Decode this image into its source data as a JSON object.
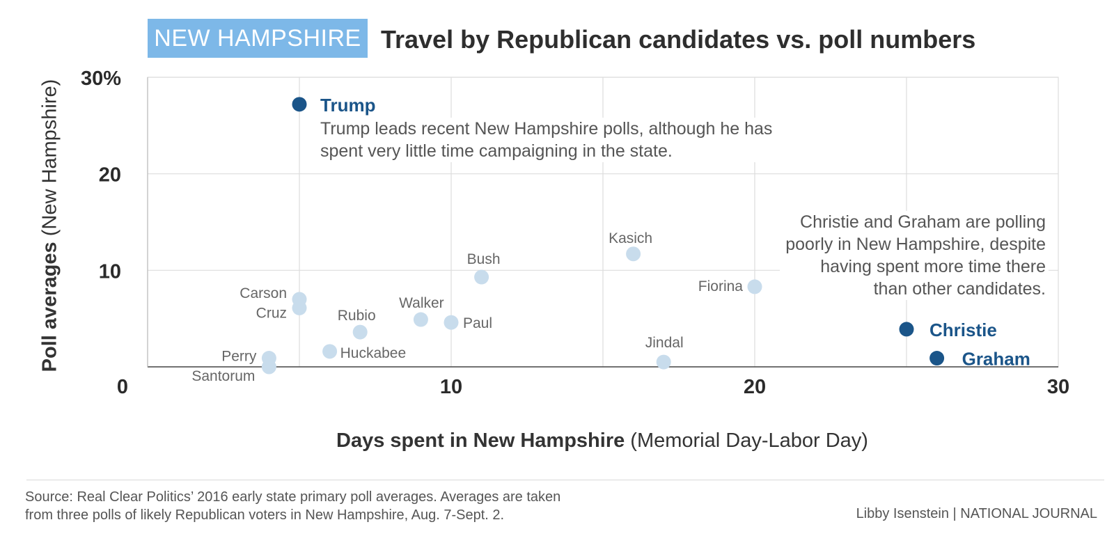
{
  "header": {
    "badge": "NEW HAMPSHIRE",
    "title": "Travel by Republican candidates vs. poll numbers"
  },
  "axes": {
    "y_label_bold": "Poll averages",
    "y_label_rest": " (New Hampshire)",
    "x_label_bold": "Days spent in New Hampshire",
    "x_label_rest": " (Memorial Day-Labor Day)"
  },
  "annotations": {
    "trump_note": "Trump leads recent New Hampshire polls, although he has spent very little time campaigning in the state.",
    "christie_graham_note": "Christie and Graham are polling poorly in New Hampshire, despite having spent more time there than other candidates."
  },
  "footer": {
    "source": "Source: Real Clear Politics’ 2016 early state primary poll averages. Averages are taken from three polls of likely Republican voters in New Hampshire, Aug. 7-Sept. 2.",
    "credit": "Libby Isenstein | NATIONAL JOURNAL"
  },
  "colors": {
    "highlight": "#1b5589",
    "muted_point": "#c8dcec",
    "badge": "#7db8e8",
    "grid": "#dddddd"
  },
  "chart_data": {
    "type": "scatter",
    "title": "Travel by Republican candidates vs. poll numbers",
    "xlabel": "Days spent in New Hampshire (Memorial Day-Labor Day)",
    "ylabel": "Poll averages (New Hampshire)",
    "xlim": [
      0,
      30
    ],
    "ylim": [
      0,
      30
    ],
    "x_ticks": [
      0,
      10,
      20,
      30
    ],
    "x_tick_labels": [
      "0",
      "10",
      "20",
      "30"
    ],
    "y_ticks": [
      10,
      20,
      30
    ],
    "y_tick_labels": [
      "10",
      "20",
      "30%"
    ],
    "grid": true,
    "points": [
      {
        "label": "Trump",
        "x": 5,
        "y": 27.2,
        "highlight": true
      },
      {
        "label": "Christie",
        "x": 25,
        "y": 3.9,
        "highlight": true
      },
      {
        "label": "Graham",
        "x": 26,
        "y": 0.9,
        "highlight": true
      },
      {
        "label": "Carson",
        "x": 5,
        "y": 7.0,
        "highlight": false
      },
      {
        "label": "Cruz",
        "x": 5,
        "y": 6.1,
        "highlight": false
      },
      {
        "label": "Perry",
        "x": 4,
        "y": 0.9,
        "highlight": false
      },
      {
        "label": "Santorum",
        "x": 4,
        "y": 0.0,
        "highlight": false
      },
      {
        "label": "Huckabee",
        "x": 6,
        "y": 1.6,
        "highlight": false
      },
      {
        "label": "Rubio",
        "x": 7,
        "y": 3.6,
        "highlight": false
      },
      {
        "label": "Walker",
        "x": 9,
        "y": 4.9,
        "highlight": false
      },
      {
        "label": "Paul",
        "x": 10,
        "y": 4.6,
        "highlight": false
      },
      {
        "label": "Bush",
        "x": 11,
        "y": 9.3,
        "highlight": false
      },
      {
        "label": "Kasich",
        "x": 16,
        "y": 11.7,
        "highlight": false
      },
      {
        "label": "Jindal",
        "x": 17,
        "y": 0.5,
        "highlight": false
      },
      {
        "label": "Fiorina",
        "x": 20,
        "y": 8.3,
        "highlight": false
      }
    ]
  }
}
